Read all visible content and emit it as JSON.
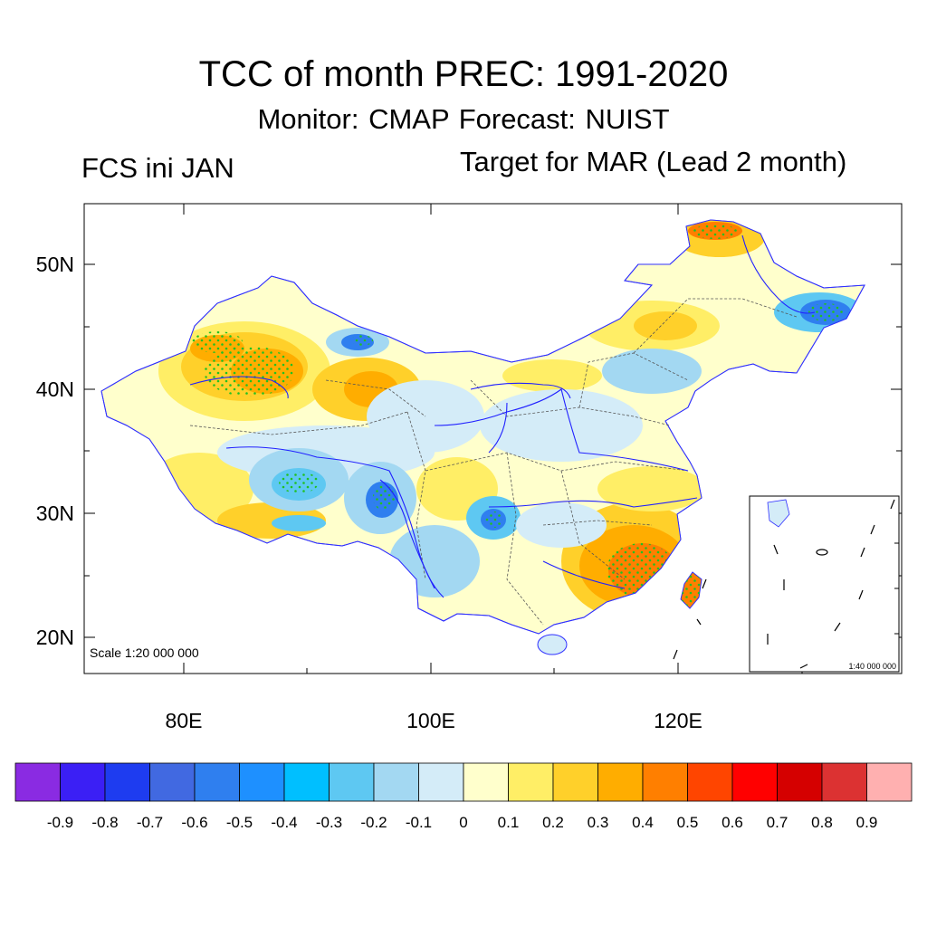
{
  "title": "TCC of month PREC: 1991-2020",
  "subtitle": "Monitor: CMAP   Forecast: NUIST",
  "left_label": "FCS ini JAN",
  "right_label": "Target for MAR (Lead 2 month)",
  "scale_label": "Scale 1:20 000 000",
  "inset_scale_label": "1:40 000 000",
  "lat_labels": [
    "50N",
    "40N",
    "30N",
    "20N"
  ],
  "lon_labels": [
    "80E",
    "100E",
    "120E"
  ],
  "colorbar": {
    "labels": [
      "-0.9",
      "-0.8",
      "-0.7",
      "-0.6",
      "-0.5",
      "-0.4",
      "-0.3",
      "-0.2",
      "-0.1",
      "0",
      "0.1",
      "0.2",
      "0.3",
      "0.4",
      "0.5",
      "0.6",
      "0.7",
      "0.8",
      "0.9"
    ],
    "colors": [
      "#8a2be2",
      "#3b1ff5",
      "#1e3cf0",
      "#4169e1",
      "#2f7fef",
      "#1e90ff",
      "#00bfff",
      "#5ec8f2",
      "#a3d8f2",
      "#d4ecf8",
      "#ffffcc",
      "#ffee66",
      "#ffd02a",
      "#ffad00",
      "#ff7f00",
      "#ff4500",
      "#ff0000",
      "#d50000",
      "#dc3232",
      "#ffb0b0"
    ]
  },
  "palette": {
    "neg_strong": "#2f7fef",
    "neg_mid": "#5ec8f2",
    "neg_light": "#a3d8f2",
    "neg_faint": "#d4ecf8",
    "pos_faint": "#ffffcc",
    "pos_light": "#ffee66",
    "pos_mid": "#ffd02a",
    "pos_strong": "#ffad00",
    "pos_high": "#ff7f00",
    "river": "#2020ff",
    "stipple": "#22c022"
  }
}
